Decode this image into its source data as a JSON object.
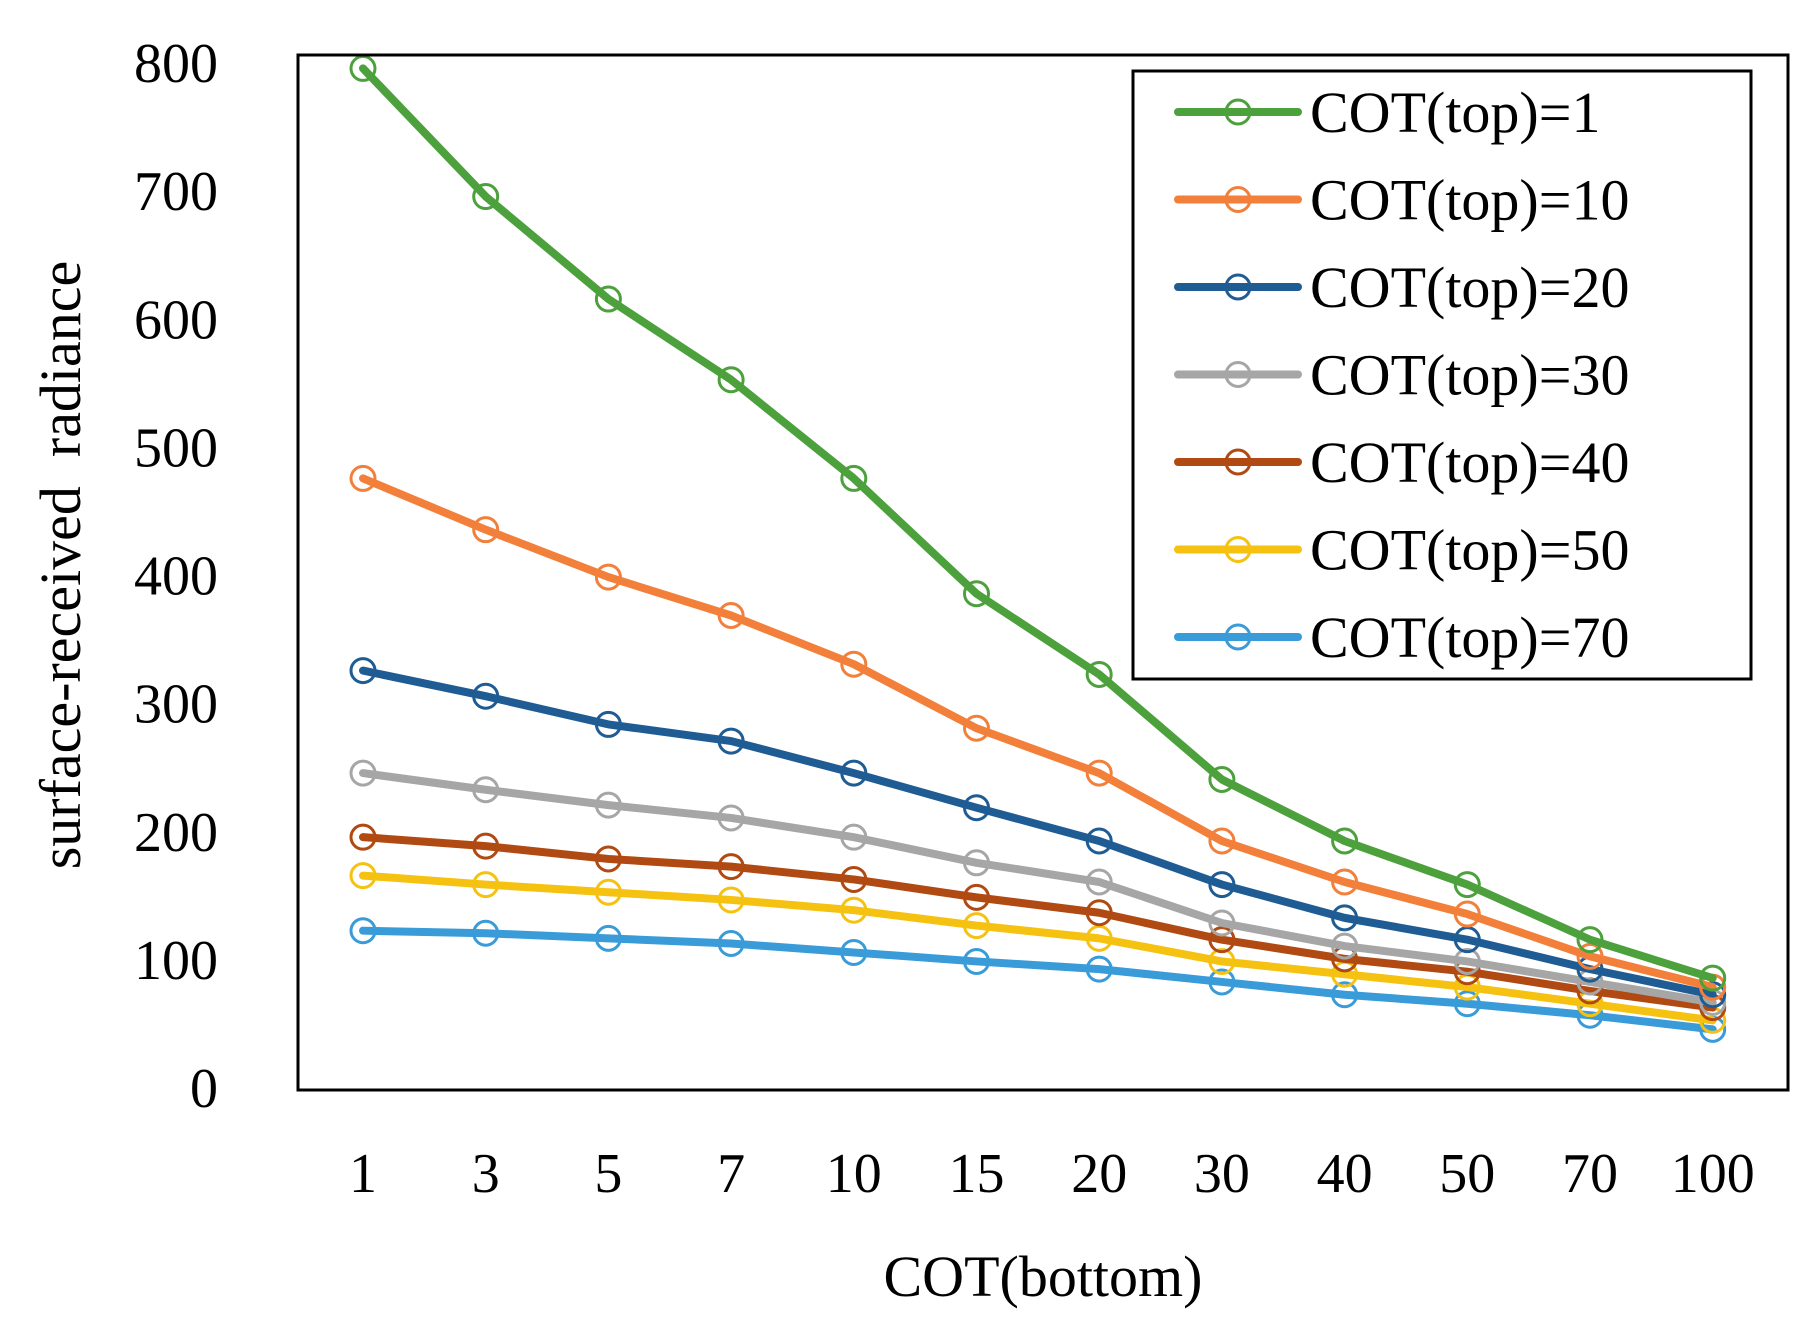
{
  "chart_data": {
    "type": "line",
    "title": "",
    "xlabel": "COT(bottom)",
    "ylabel": "surface-received  radiance",
    "categories": [
      "1",
      "3",
      "5",
      "7",
      "10",
      "15",
      "20",
      "30",
      "40",
      "50",
      "70",
      "100"
    ],
    "y_ticks": [
      "0",
      "100",
      "200",
      "300",
      "400",
      "500",
      "600",
      "700",
      "800"
    ],
    "ylim": [
      0,
      800
    ],
    "grid": false,
    "legend_position": "top-right",
    "marker": "open-circle",
    "series": [
      {
        "name": "COT(top)=1",
        "color": "#4CA13C",
        "values": [
          795,
          695,
          615,
          552,
          475,
          385,
          322,
          240,
          192,
          158,
          115,
          85
        ]
      },
      {
        "name": "COT(top)=10",
        "color": "#F2803A",
        "values": [
          475,
          435,
          398,
          368,
          330,
          280,
          245,
          192,
          160,
          135,
          102,
          78
        ]
      },
      {
        "name": "COT(top)=20",
        "color": "#1F5C94",
        "values": [
          325,
          305,
          283,
          270,
          245,
          218,
          192,
          158,
          132,
          115,
          92,
          72
        ]
      },
      {
        "name": "COT(top)=30",
        "color": "#A6A6A6",
        "values": [
          245,
          232,
          220,
          210,
          195,
          175,
          160,
          128,
          110,
          98,
          82,
          66
        ]
      },
      {
        "name": "COT(top)=40",
        "color": "#B04A12",
        "values": [
          195,
          188,
          178,
          172,
          162,
          148,
          136,
          115,
          100,
          90,
          75,
          62
        ]
      },
      {
        "name": "COT(top)=50",
        "color": "#F5C211",
        "values": [
          165,
          158,
          152,
          146,
          138,
          126,
          116,
          98,
          88,
          78,
          65,
          52
        ]
      },
      {
        "name": "COT(top)=70",
        "color": "#3A9BD9",
        "values": [
          122,
          120,
          116,
          112,
          105,
          98,
          92,
          82,
          72,
          65,
          56,
          45
        ]
      }
    ]
  }
}
